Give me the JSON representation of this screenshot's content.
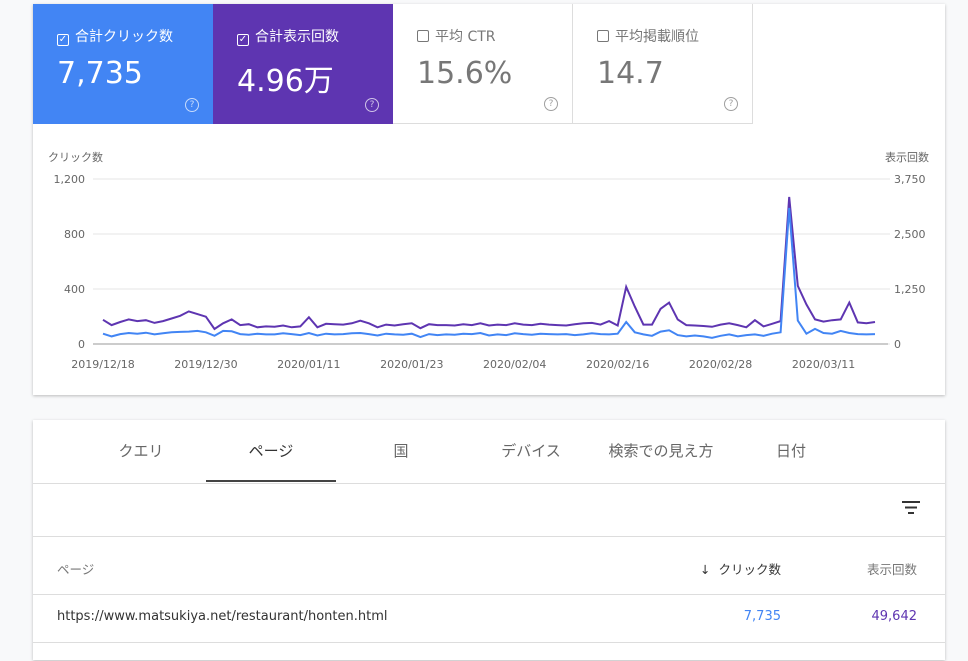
{
  "metrics": [
    {
      "label": "合計クリック数",
      "value": "7,735",
      "checked": true,
      "color": "#4285f4"
    },
    {
      "label": "合計表示回数",
      "value": "4.96万",
      "checked": true,
      "color": "#5e35b1"
    },
    {
      "label": "平均 CTR",
      "value": "15.6%",
      "checked": false,
      "color": "#ffffff"
    },
    {
      "label": "平均掲載順位",
      "value": "14.7",
      "checked": false,
      "color": "#ffffff"
    }
  ],
  "chart_data": {
    "type": "line",
    "y_label": "クリック数",
    "y2_label": "表示回数",
    "categories": [
      "2019/12/18",
      null,
      null,
      null,
      null,
      null,
      null,
      null,
      null,
      null,
      null,
      null,
      "2019/12/30",
      null,
      null,
      null,
      null,
      null,
      null,
      null,
      null,
      null,
      null,
      null,
      "2020/01/11",
      null,
      null,
      null,
      null,
      null,
      null,
      null,
      null,
      null,
      null,
      null,
      "2020/01/23",
      null,
      null,
      null,
      null,
      null,
      null,
      null,
      null,
      null,
      null,
      null,
      "2020/02/04",
      null,
      null,
      null,
      null,
      null,
      null,
      null,
      null,
      null,
      null,
      null,
      "2020/02/16",
      null,
      null,
      null,
      null,
      null,
      null,
      null,
      null,
      null,
      null,
      null,
      "2020/02/28",
      null,
      null,
      null,
      null,
      null,
      null,
      null,
      null,
      null,
      null,
      null,
      "2020/03/11",
      null,
      null,
      null,
      null,
      null,
      null
    ],
    "series": [
      {
        "color": "#4285f4",
        "axis": "y",
        "values": [
          75,
          55,
          72,
          80,
          75,
          82,
          70,
          78,
          85,
          88,
          90,
          95,
          85,
          60,
          95,
          92,
          72,
          68,
          75,
          70,
          70,
          78,
          72,
          65,
          80,
          62,
          75,
          70,
          72,
          78,
          80,
          72,
          62,
          75,
          70,
          68,
          75,
          50,
          72,
          65,
          70,
          68,
          75,
          72,
          80,
          62,
          70,
          65,
          78,
          72,
          68,
          75,
          72,
          70,
          72,
          65,
          70,
          78,
          72,
          70,
          75,
          160,
          85,
          70,
          60,
          90,
          100,
          65,
          55,
          62,
          55,
          45,
          60,
          70,
          55,
          65,
          70,
          60,
          75,
          85,
          990,
          170,
          75,
          110,
          80,
          75,
          95,
          80,
          72,
          70,
          72
        ]
      },
      {
        "color": "#5e35b1",
        "axis": "y2",
        "values": [
          550,
          430,
          500,
          560,
          520,
          540,
          480,
          520,
          580,
          640,
          740,
          680,
          620,
          340,
          470,
          560,
          430,
          450,
          380,
          400,
          390,
          420,
          380,
          400,
          610,
          380,
          460,
          450,
          440,
          470,
          530,
          470,
          380,
          440,
          420,
          450,
          470,
          360,
          450,
          430,
          430,
          420,
          450,
          430,
          470,
          420,
          440,
          430,
          470,
          440,
          430,
          460,
          440,
          430,
          420,
          450,
          470,
          480,
          440,
          520,
          420,
          1300,
          850,
          440,
          440,
          800,
          940,
          560,
          430,
          420,
          410,
          390,
          440,
          470,
          430,
          380,
          540,
          400,
          460,
          520,
          3340,
          1320,
          900,
          560,
          510,
          540,
          560,
          940,
          490,
          470,
          500
        ]
      }
    ],
    "ylim": [
      0,
      1200
    ],
    "yticks": [
      0,
      400,
      800,
      {
        "value": 1200,
        "label": "1,200"
      }
    ],
    "y2lim": [
      0,
      3750
    ],
    "y2ticks": [
      0,
      {
        "value": 1250,
        "label": "1,250"
      },
      {
        "value": 2500,
        "label": "2,500"
      },
      {
        "value": 3750,
        "label": "3,750"
      }
    ],
    "grid": true
  },
  "tabs": [
    "クエリ",
    "ページ",
    "国",
    "デバイス",
    "検索での見え方",
    "日付"
  ],
  "active_tab": 1,
  "table": {
    "headers": [
      "ページ",
      "クリック数",
      "表示回数"
    ],
    "rows": [
      [
        "https://www.matsukiya.net/restaurant/honten.html",
        "7,735",
        "49,642"
      ]
    ]
  }
}
